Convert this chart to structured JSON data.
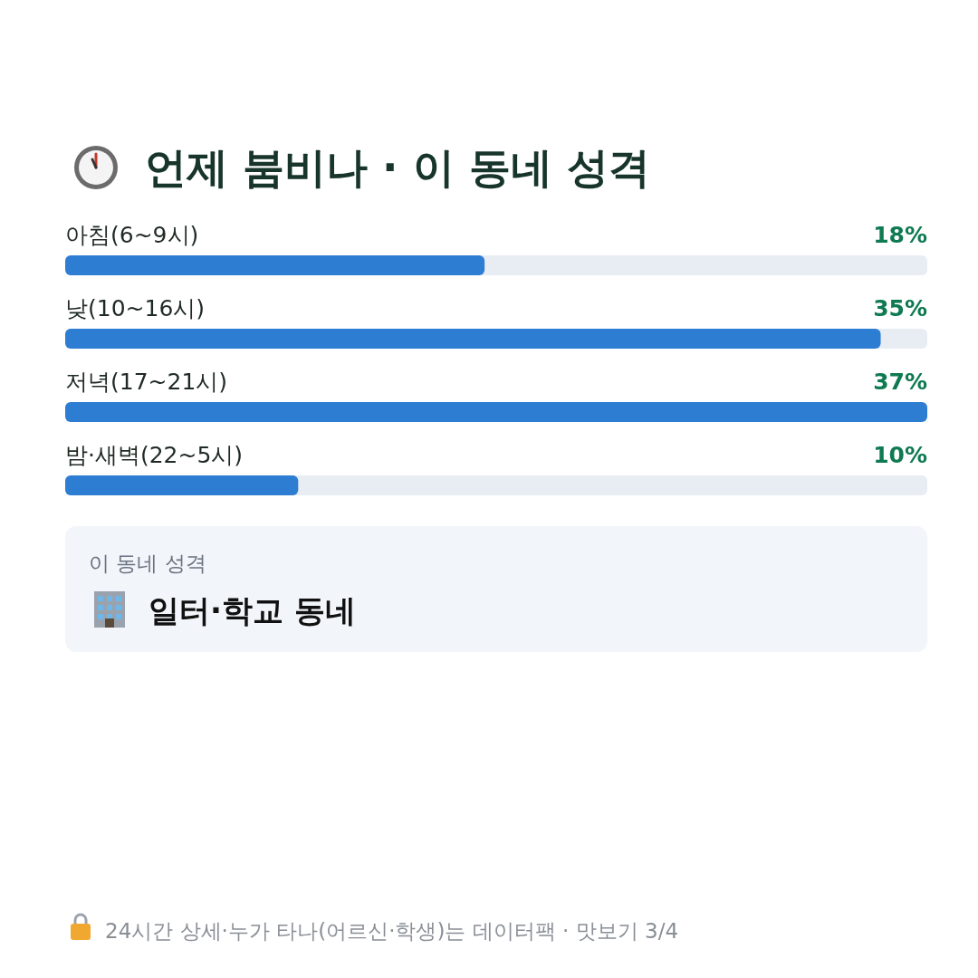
{
  "chart_data": {
    "type": "bar",
    "orientation": "horizontal",
    "title": "언제 붐비나 · 이 동네 성격",
    "categories": [
      "아침(6~9시)",
      "낮(10~16시)",
      "저녁(17~21시)",
      "밤·새벽(22~5시)"
    ],
    "values": [
      18,
      35,
      37,
      10
    ],
    "color": "#2d7dd2",
    "value_labels": [
      "18%",
      "35%",
      "37%",
      "10%"
    ],
    "annotations": [
      "이 동네 성격",
      "일터·학교 동네",
      "24시간 상세·누가 타나(어르신·학생)는 데이터팩 · 맛보기 3/4"
    ]
  }
}
